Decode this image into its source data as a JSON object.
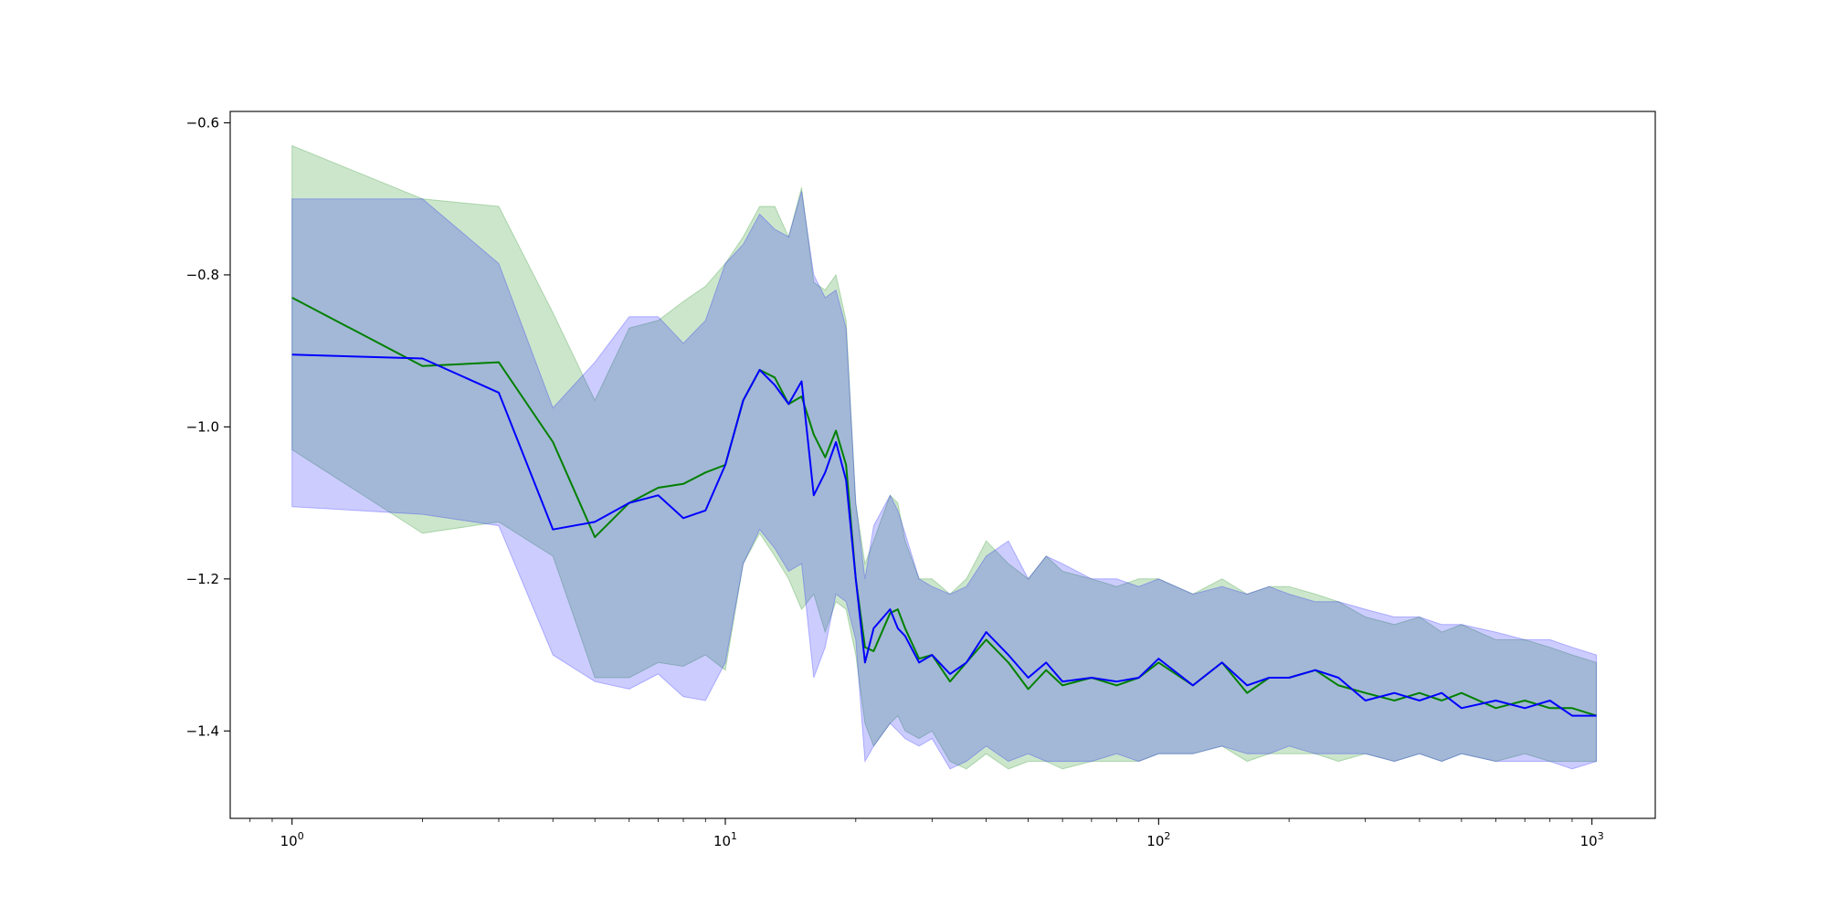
{
  "chart_data": {
    "type": "line",
    "title": "",
    "xlabel": "",
    "ylabel": "",
    "xscale": "log",
    "xlim": [
      0.72,
      1400
    ],
    "ylim": [
      -1.515,
      -0.585
    ],
    "grid": false,
    "legend": "none",
    "x_ticks": [
      {
        "value": 1,
        "base": "10",
        "exp": "0"
      },
      {
        "value": 10,
        "base": "10",
        "exp": "1"
      },
      {
        "value": 100,
        "base": "10",
        "exp": "2"
      },
      {
        "value": 1000,
        "base": "10",
        "exp": "3"
      }
    ],
    "y_ticks": [
      {
        "value": -0.6,
        "label": "−0.6"
      },
      {
        "value": -0.8,
        "label": "−0.8"
      },
      {
        "value": -1.0,
        "label": "−1.0"
      },
      {
        "value": -1.2,
        "label": "−1.2"
      },
      {
        "value": -1.4,
        "label": "−1.4"
      }
    ],
    "series": [
      {
        "color": "#008000",
        "band_color": "#008000",
        "band_opacity": 0.2,
        "x": [
          1,
          2,
          3,
          4,
          5,
          6,
          7,
          8,
          9,
          10,
          11,
          12,
          13,
          14,
          15,
          16,
          17,
          18,
          19,
          20,
          21,
          22,
          24,
          25,
          26,
          28,
          30,
          33,
          36,
          40,
          45,
          50,
          55,
          60,
          70,
          80,
          90,
          100,
          120,
          140,
          160,
          180,
          200,
          230,
          260,
          300,
          350,
          400,
          450,
          500,
          600,
          700,
          800,
          900,
          1024
        ],
        "y": [
          -0.83,
          -0.92,
          -0.915,
          -1.02,
          -1.145,
          -1.1,
          -1.08,
          -1.075,
          -1.06,
          -1.05,
          -0.965,
          -0.925,
          -0.935,
          -0.97,
          -0.96,
          -1.01,
          -1.04,
          -1.005,
          -1.05,
          -1.2,
          -1.29,
          -1.295,
          -1.245,
          -1.24,
          -1.265,
          -1.305,
          -1.3,
          -1.335,
          -1.31,
          -1.28,
          -1.31,
          -1.345,
          -1.32,
          -1.34,
          -1.33,
          -1.34,
          -1.33,
          -1.31,
          -1.34,
          -1.31,
          -1.35,
          -1.33,
          -1.33,
          -1.32,
          -1.34,
          -1.35,
          -1.36,
          -1.35,
          -1.36,
          -1.35,
          -1.37,
          -1.36,
          -1.37,
          -1.37,
          -1.38
        ],
        "upper": [
          -0.63,
          -0.7,
          -0.71,
          -0.85,
          -0.965,
          -0.87,
          -0.86,
          -0.835,
          -0.815,
          -0.785,
          -0.75,
          -0.71,
          -0.71,
          -0.75,
          -0.685,
          -0.81,
          -0.82,
          -0.8,
          -0.86,
          -1.1,
          -1.18,
          -1.15,
          -1.09,
          -1.1,
          -1.15,
          -1.2,
          -1.2,
          -1.22,
          -1.2,
          -1.15,
          -1.18,
          -1.2,
          -1.17,
          -1.19,
          -1.2,
          -1.21,
          -1.2,
          -1.2,
          -1.22,
          -1.2,
          -1.22,
          -1.21,
          -1.21,
          -1.22,
          -1.23,
          -1.25,
          -1.26,
          -1.25,
          -1.27,
          -1.26,
          -1.28,
          -1.28,
          -1.29,
          -1.3,
          -1.31
        ],
        "lower": [
          -1.03,
          -1.14,
          -1.125,
          -1.17,
          -1.33,
          -1.33,
          -1.31,
          -1.315,
          -1.3,
          -1.32,
          -1.18,
          -1.14,
          -1.17,
          -1.2,
          -1.24,
          -1.22,
          -1.27,
          -1.23,
          -1.24,
          -1.3,
          -1.39,
          -1.42,
          -1.39,
          -1.38,
          -1.4,
          -1.41,
          -1.4,
          -1.44,
          -1.45,
          -1.43,
          -1.45,
          -1.44,
          -1.44,
          -1.45,
          -1.44,
          -1.44,
          -1.44,
          -1.43,
          -1.43,
          -1.42,
          -1.44,
          -1.43,
          -1.43,
          -1.43,
          -1.44,
          -1.43,
          -1.44,
          -1.43,
          -1.44,
          -1.43,
          -1.44,
          -1.43,
          -1.44,
          -1.44,
          -1.44
        ]
      },
      {
        "color": "#0000ff",
        "band_color": "#0000ff",
        "band_opacity": 0.2,
        "x": [
          1,
          2,
          3,
          4,
          5,
          6,
          7,
          8,
          9,
          10,
          11,
          12,
          13,
          14,
          15,
          16,
          17,
          18,
          19,
          20,
          21,
          22,
          24,
          25,
          26,
          28,
          30,
          33,
          36,
          40,
          45,
          50,
          55,
          60,
          70,
          80,
          90,
          100,
          120,
          140,
          160,
          180,
          200,
          230,
          260,
          300,
          350,
          400,
          450,
          500,
          600,
          700,
          800,
          900,
          1024
        ],
        "y": [
          -0.905,
          -0.91,
          -0.955,
          -1.135,
          -1.125,
          -1.1,
          -1.09,
          -1.12,
          -1.11,
          -1.05,
          -0.965,
          -0.925,
          -0.945,
          -0.97,
          -0.94,
          -1.09,
          -1.06,
          -1.02,
          -1.07,
          -1.2,
          -1.31,
          -1.265,
          -1.24,
          -1.265,
          -1.275,
          -1.31,
          -1.3,
          -1.325,
          -1.31,
          -1.27,
          -1.3,
          -1.33,
          -1.31,
          -1.335,
          -1.33,
          -1.335,
          -1.33,
          -1.305,
          -1.34,
          -1.31,
          -1.34,
          -1.33,
          -1.33,
          -1.32,
          -1.33,
          -1.36,
          -1.35,
          -1.36,
          -1.35,
          -1.37,
          -1.36,
          -1.37,
          -1.36,
          -1.38,
          -1.38
        ],
        "upper": [
          -0.7,
          -0.7,
          -0.785,
          -0.975,
          -0.915,
          -0.855,
          -0.855,
          -0.89,
          -0.86,
          -0.785,
          -0.76,
          -0.72,
          -0.74,
          -0.75,
          -0.69,
          -0.8,
          -0.83,
          -0.82,
          -0.87,
          -1.1,
          -1.2,
          -1.13,
          -1.09,
          -1.11,
          -1.14,
          -1.2,
          -1.21,
          -1.22,
          -1.21,
          -1.17,
          -1.15,
          -1.2,
          -1.17,
          -1.18,
          -1.2,
          -1.2,
          -1.21,
          -1.2,
          -1.22,
          -1.21,
          -1.22,
          -1.21,
          -1.22,
          -1.23,
          -1.23,
          -1.24,
          -1.25,
          -1.25,
          -1.26,
          -1.26,
          -1.27,
          -1.28,
          -1.28,
          -1.29,
          -1.3
        ],
        "lower": [
          -1.105,
          -1.115,
          -1.13,
          -1.3,
          -1.335,
          -1.345,
          -1.325,
          -1.355,
          -1.36,
          -1.31,
          -1.18,
          -1.135,
          -1.16,
          -1.19,
          -1.18,
          -1.33,
          -1.29,
          -1.22,
          -1.23,
          -1.28,
          -1.44,
          -1.42,
          -1.39,
          -1.4,
          -1.41,
          -1.42,
          -1.41,
          -1.45,
          -1.44,
          -1.42,
          -1.44,
          -1.43,
          -1.44,
          -1.44,
          -1.44,
          -1.43,
          -1.44,
          -1.43,
          -1.43,
          -1.42,
          -1.43,
          -1.43,
          -1.42,
          -1.43,
          -1.43,
          -1.43,
          -1.44,
          -1.43,
          -1.44,
          -1.43,
          -1.44,
          -1.44,
          -1.44,
          -1.45,
          -1.44
        ]
      }
    ]
  }
}
